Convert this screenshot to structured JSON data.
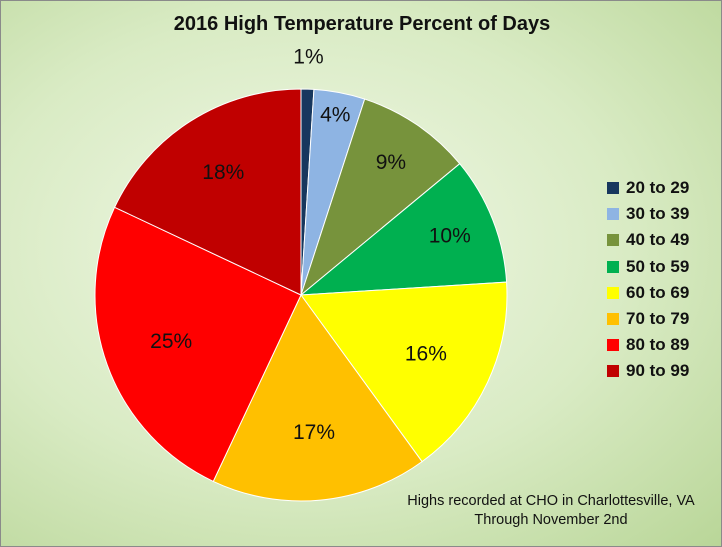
{
  "chart_data": {
    "type": "pie",
    "title": "2016 High Temperature Percent of Days",
    "categories": [
      "20 to 29",
      "30 to 39",
      "40 to 49",
      "50 to 59",
      "60 to 69",
      "70 to 79",
      "80 to 89",
      "90 to 99"
    ],
    "values": [
      1,
      4,
      9,
      10,
      16,
      17,
      25,
      18
    ],
    "data_labels": [
      "1%",
      "4%",
      "9%",
      "10%",
      "16%",
      "17%",
      "25%",
      "18%"
    ],
    "colors": [
      "#17375e",
      "#8eb4e3",
      "#77933c",
      "#00b050",
      "#ffff00",
      "#ffc000",
      "#ff0000",
      "#c00000"
    ],
    "legend_position": "right",
    "annotation": [
      "Highs recorded at CHO in Charlottesville, VA",
      "Through November 2nd"
    ]
  }
}
